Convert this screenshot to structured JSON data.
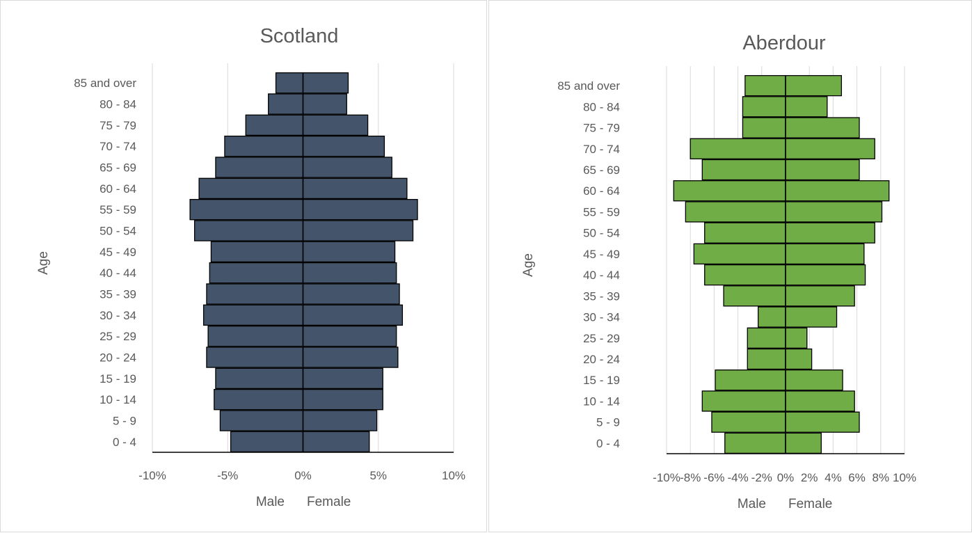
{
  "chart_data": [
    {
      "type": "bar",
      "orientation": "horizontal",
      "title": "Scotland",
      "ylabel": "Age",
      "xlabel_left": "Male",
      "xlabel_right": "Female",
      "xlim": [
        -10,
        10
      ],
      "xticks": [
        -10,
        -5,
        0,
        5,
        10
      ],
      "xtick_labels": [
        "-10%",
        "-5%",
        "0%",
        "5%",
        "10%"
      ],
      "grid": "vertical",
      "bar_color": "#44546a",
      "categories": [
        "0 - 4",
        "5 - 9",
        "10 - 14",
        "15 - 19",
        "20 - 24",
        "25 - 29",
        "30 - 34",
        "35 - 39",
        "40 - 44",
        "45 - 49",
        "50 - 54",
        "55 - 59",
        "60 - 64",
        "65 - 69",
        "70 - 74",
        "75 - 79",
        "80 - 84",
        "85 and over"
      ],
      "series": [
        {
          "values": [
            -4.8,
            -5.5,
            -5.9,
            -5.8,
            -6.4,
            -6.3,
            -6.6,
            -6.4,
            -6.2,
            -6.1,
            -7.2,
            -7.5,
            -6.9,
            -5.8,
            -5.2,
            -3.8,
            -2.3,
            -1.8
          ]
        },
        {
          "values": [
            4.4,
            4.9,
            5.3,
            5.3,
            6.3,
            6.2,
            6.6,
            6.4,
            6.2,
            6.1,
            7.3,
            7.6,
            6.9,
            5.9,
            5.4,
            4.3,
            2.9,
            3.0
          ]
        }
      ]
    },
    {
      "type": "bar",
      "orientation": "horizontal",
      "title": "Aberdour",
      "ylabel": "Age",
      "xlabel_left": "Male",
      "xlabel_right": "Female",
      "xlim": [
        -10,
        10
      ],
      "xticks": [
        -10,
        -8,
        -6,
        -4,
        -2,
        0,
        2,
        4,
        6,
        8,
        10
      ],
      "xtick_labels": [
        "-10%",
        "-8%",
        "-6%",
        "-4%",
        "-2%",
        "0%",
        "2%",
        "4%",
        "6%",
        "8%",
        "10%"
      ],
      "grid": "vertical",
      "bar_color": "#70ad47",
      "categories": [
        "0 - 4",
        "5 - 9",
        "10 - 14",
        "15 - 19",
        "20 - 24",
        "25 - 29",
        "30 - 34",
        "35 - 39",
        "40 - 44",
        "45 - 49",
        "50 - 54",
        "55 - 59",
        "60 - 64",
        "65 - 69",
        "70 - 74",
        "75 - 79",
        "80 - 84",
        "85 and over"
      ],
      "series": [
        {
          "values": [
            -5.1,
            -6.2,
            -7.0,
            -5.9,
            -3.2,
            -3.2,
            -2.3,
            -5.2,
            -6.8,
            -7.7,
            -6.8,
            -8.4,
            -9.4,
            -7.0,
            -8.0,
            -3.6,
            -3.6,
            -3.4
          ]
        },
        {
          "values": [
            3.0,
            6.2,
            5.8,
            4.8,
            2.2,
            1.8,
            4.3,
            5.8,
            6.7,
            6.6,
            7.5,
            8.1,
            8.7,
            6.2,
            7.5,
            6.2,
            3.5,
            4.7
          ]
        }
      ]
    }
  ]
}
